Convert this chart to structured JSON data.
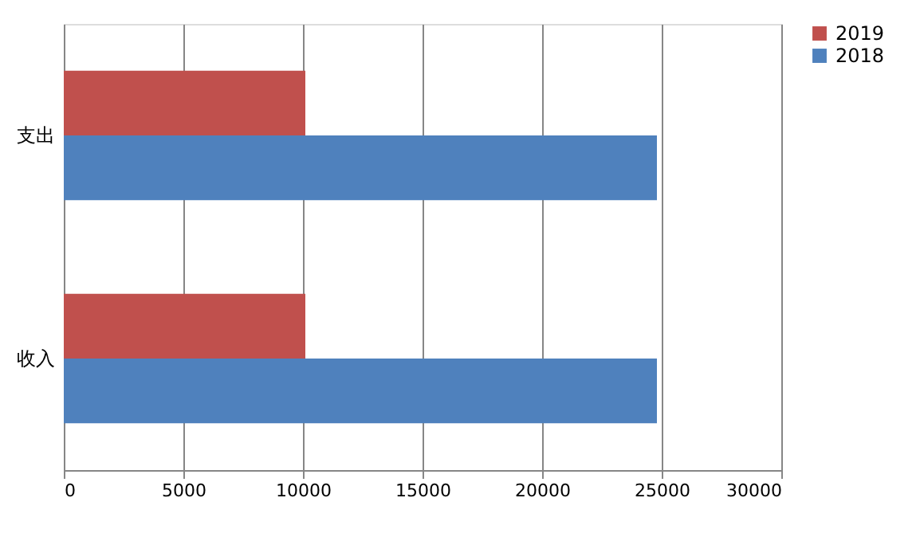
{
  "chart_data": {
    "type": "bar",
    "orientation": "horizontal",
    "categories": [
      "支出",
      "收入"
    ],
    "series": [
      {
        "name": "2019",
        "color": "#c0504d",
        "values": [
          10100,
          10100
        ]
      },
      {
        "name": "2018",
        "color": "#4f81bd",
        "values": [
          24800,
          24800
        ]
      }
    ],
    "xlim": [
      0,
      30000
    ],
    "xticks": [
      0,
      5000,
      10000,
      15000,
      20000,
      25000,
      30000
    ],
    "grid": "x",
    "legend": "right"
  }
}
